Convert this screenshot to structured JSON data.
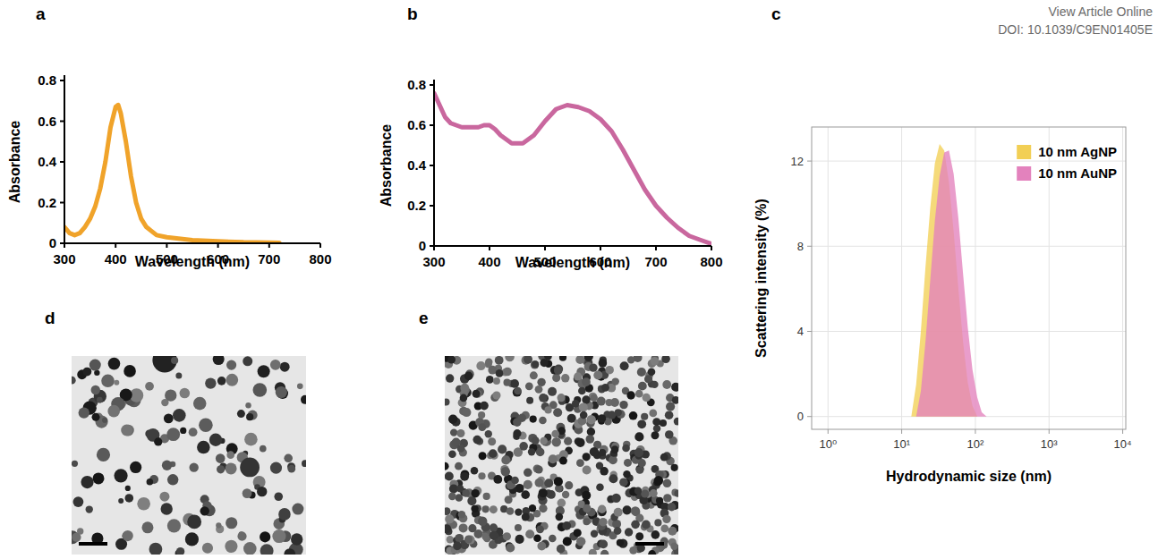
{
  "header": {
    "line1": "View Article Online",
    "line2": "DOI: 10.1039/C9EN01405E"
  },
  "panel_labels": [
    "a",
    "b",
    "c",
    "d",
    "e"
  ],
  "chart_data": [
    {
      "type": "line",
      "x_label": "Wavelength (nm)",
      "y_label": "Absorbance",
      "color": "#f0a32a",
      "x": [
        300,
        310,
        320,
        330,
        340,
        350,
        360,
        370,
        380,
        390,
        400,
        405,
        410,
        420,
        430,
        440,
        450,
        460,
        480,
        500,
        550,
        600,
        650,
        700,
        720
      ],
      "values": [
        0.08,
        0.05,
        0.04,
        0.05,
        0.08,
        0.12,
        0.18,
        0.27,
        0.4,
        0.57,
        0.67,
        0.68,
        0.64,
        0.5,
        0.33,
        0.2,
        0.12,
        0.08,
        0.04,
        0.03,
        0.015,
        0.01,
        0.005,
        0.003,
        0.002
      ],
      "xlim": [
        300,
        800
      ],
      "xticks": [
        300,
        400,
        500,
        600,
        700,
        800
      ],
      "ylim": [
        0,
        0.8
      ],
      "yticks": [
        0,
        0.2,
        0.4,
        0.6,
        0.8
      ],
      "grid": false
    },
    {
      "type": "line",
      "x_label": "Wavelength (nm)",
      "y_label": "Absorbance",
      "color": "#c9679e",
      "x": [
        300,
        310,
        320,
        330,
        340,
        350,
        360,
        370,
        380,
        390,
        400,
        410,
        420,
        440,
        460,
        480,
        500,
        520,
        540,
        560,
        580,
        600,
        620,
        640,
        660,
        680,
        700,
        720,
        740,
        760,
        780,
        800
      ],
      "values": [
        0.76,
        0.7,
        0.64,
        0.61,
        0.6,
        0.59,
        0.59,
        0.59,
        0.59,
        0.6,
        0.6,
        0.58,
        0.55,
        0.51,
        0.51,
        0.55,
        0.62,
        0.68,
        0.7,
        0.69,
        0.67,
        0.63,
        0.57,
        0.48,
        0.38,
        0.28,
        0.2,
        0.14,
        0.09,
        0.05,
        0.03,
        0.01
      ],
      "xlim": [
        300,
        800
      ],
      "xticks": [
        300,
        400,
        500,
        600,
        700,
        800
      ],
      "ylim": [
        0,
        0.8
      ],
      "yticks": [
        0,
        0.2,
        0.4,
        0.6,
        0.8
      ],
      "grid": false
    },
    {
      "type": "area",
      "x_label": "Hydrodynamic size (nm)",
      "y_label": "Scattering intensity (%)",
      "x": [
        13.5,
        15.7,
        18.2,
        21.0,
        24.4,
        28.2,
        32.7,
        37.8,
        43.8,
        50.7,
        58.8,
        68.1,
        78.8,
        91.3,
        106,
        122,
        142
      ],
      "series": [
        {
          "name": "10 nm AgNP",
          "color": "#f2cf55",
          "values": [
            0,
            1.5,
            4.0,
            7.0,
            9.8,
            11.9,
            12.8,
            12.5,
            11.0,
            8.7,
            6.0,
            3.5,
            1.6,
            0.5,
            0,
            0,
            0
          ]
        },
        {
          "name": "10 nm AuNP",
          "color": "#e382bd",
          "values": [
            0,
            0,
            1.2,
            3.5,
            6.4,
            9.2,
            11.3,
            12.4,
            12.5,
            11.4,
            9.3,
            6.7,
            4.2,
            2.2,
            0.9,
            0.2,
            0
          ]
        }
      ],
      "log": "x",
      "xlim": [
        0.6,
        11000
      ],
      "xticks": [
        {
          "value": 1,
          "label": "10⁰"
        },
        {
          "value": 10,
          "label": "10¹"
        },
        {
          "value": 100,
          "label": "10²"
        },
        {
          "value": 1000,
          "label": "10³"
        },
        {
          "value": 10000,
          "label": "10⁴"
        }
      ],
      "ylim": [
        -0.6,
        13.6
      ],
      "yticks": [
        0,
        4,
        8,
        12
      ],
      "grid": true,
      "legend": "top-right"
    }
  ]
}
